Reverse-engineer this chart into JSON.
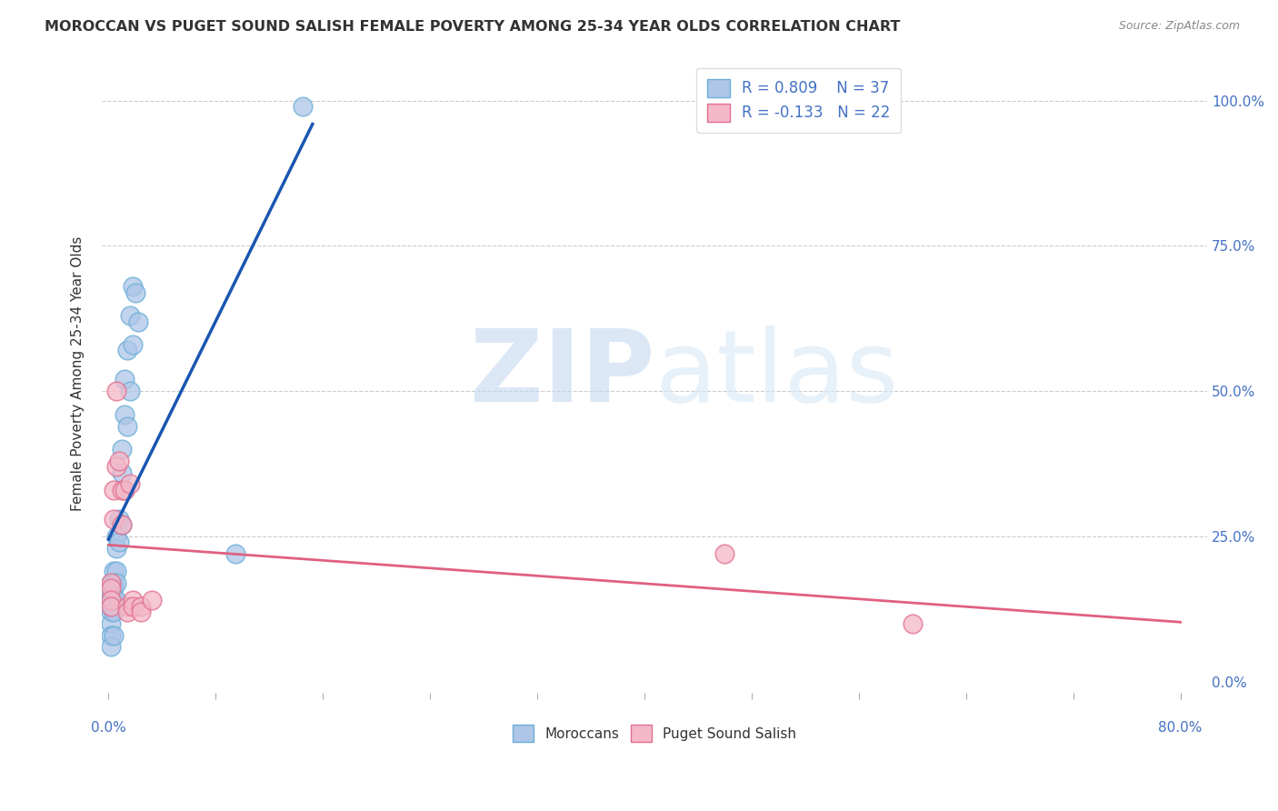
{
  "title": "MOROCCAN VS PUGET SOUND SALISH FEMALE POVERTY AMONG 25-34 YEAR OLDS CORRELATION CHART",
  "source": "Source: ZipAtlas.com",
  "ylabel": "Female Poverty Among 25-34 Year Olds",
  "xlabel_left_label": "0.0%",
  "xlabel_right_label": "80.0%",
  "ylabel_ticks": [
    "0.0%",
    "25.0%",
    "50.0%",
    "75.0%",
    "100.0%"
  ],
  "ylabel_tick_vals": [
    0.0,
    0.25,
    0.5,
    0.75,
    1.0
  ],
  "xlim": [
    -0.005,
    0.82
  ],
  "ylim": [
    -0.02,
    1.08
  ],
  "moroccan_color": "#aec6e8",
  "moroccan_edge_color": "#6baed6",
  "puget_color": "#f4b8c8",
  "puget_edge_color": "#e07090",
  "moroccan_line_color": "#1a56b0",
  "puget_line_color": "#e06080",
  "background_color": "#ffffff",
  "grid_color": "#cccccc",
  "legend_moroccan_r": "R = 0.809",
  "legend_moroccan_n": "N = 37",
  "legend_puget_r": "R = -0.133",
  "legend_puget_n": "N = 22",
  "moroccan_x": [
    0.002,
    0.002,
    0.002,
    0.002,
    0.002,
    0.002,
    0.002,
    0.002,
    0.004,
    0.004,
    0.004,
    0.004,
    0.004,
    0.004,
    0.006,
    0.006,
    0.006,
    0.006,
    0.006,
    0.008,
    0.008,
    0.01,
    0.01,
    0.01,
    0.012,
    0.012,
    0.012,
    0.014,
    0.014,
    0.016,
    0.016,
    0.018,
    0.018,
    0.02,
    0.022,
    0.095,
    0.145
  ],
  "moroccan_y": [
    0.17,
    0.15,
    0.14,
    0.13,
    0.12,
    0.1,
    0.08,
    0.06,
    0.19,
    0.17,
    0.16,
    0.14,
    0.12,
    0.08,
    0.25,
    0.23,
    0.19,
    0.17,
    0.14,
    0.28,
    0.24,
    0.4,
    0.36,
    0.27,
    0.52,
    0.46,
    0.33,
    0.57,
    0.44,
    0.63,
    0.5,
    0.68,
    0.58,
    0.67,
    0.62,
    0.22,
    0.99
  ],
  "puget_x": [
    0.002,
    0.002,
    0.002,
    0.002,
    0.004,
    0.004,
    0.006,
    0.006,
    0.008,
    0.01,
    0.01,
    0.012,
    0.014,
    0.014,
    0.016,
    0.018,
    0.018,
    0.024,
    0.024,
    0.032,
    0.46,
    0.6
  ],
  "puget_y": [
    0.17,
    0.16,
    0.14,
    0.13,
    0.33,
    0.28,
    0.5,
    0.37,
    0.38,
    0.33,
    0.27,
    0.33,
    0.13,
    0.12,
    0.34,
    0.14,
    0.13,
    0.13,
    0.12,
    0.14,
    0.22,
    0.1
  ],
  "xtick_minor_vals": [
    0.0,
    0.08,
    0.16,
    0.24,
    0.32,
    0.4,
    0.48,
    0.56,
    0.64,
    0.72,
    0.8
  ]
}
